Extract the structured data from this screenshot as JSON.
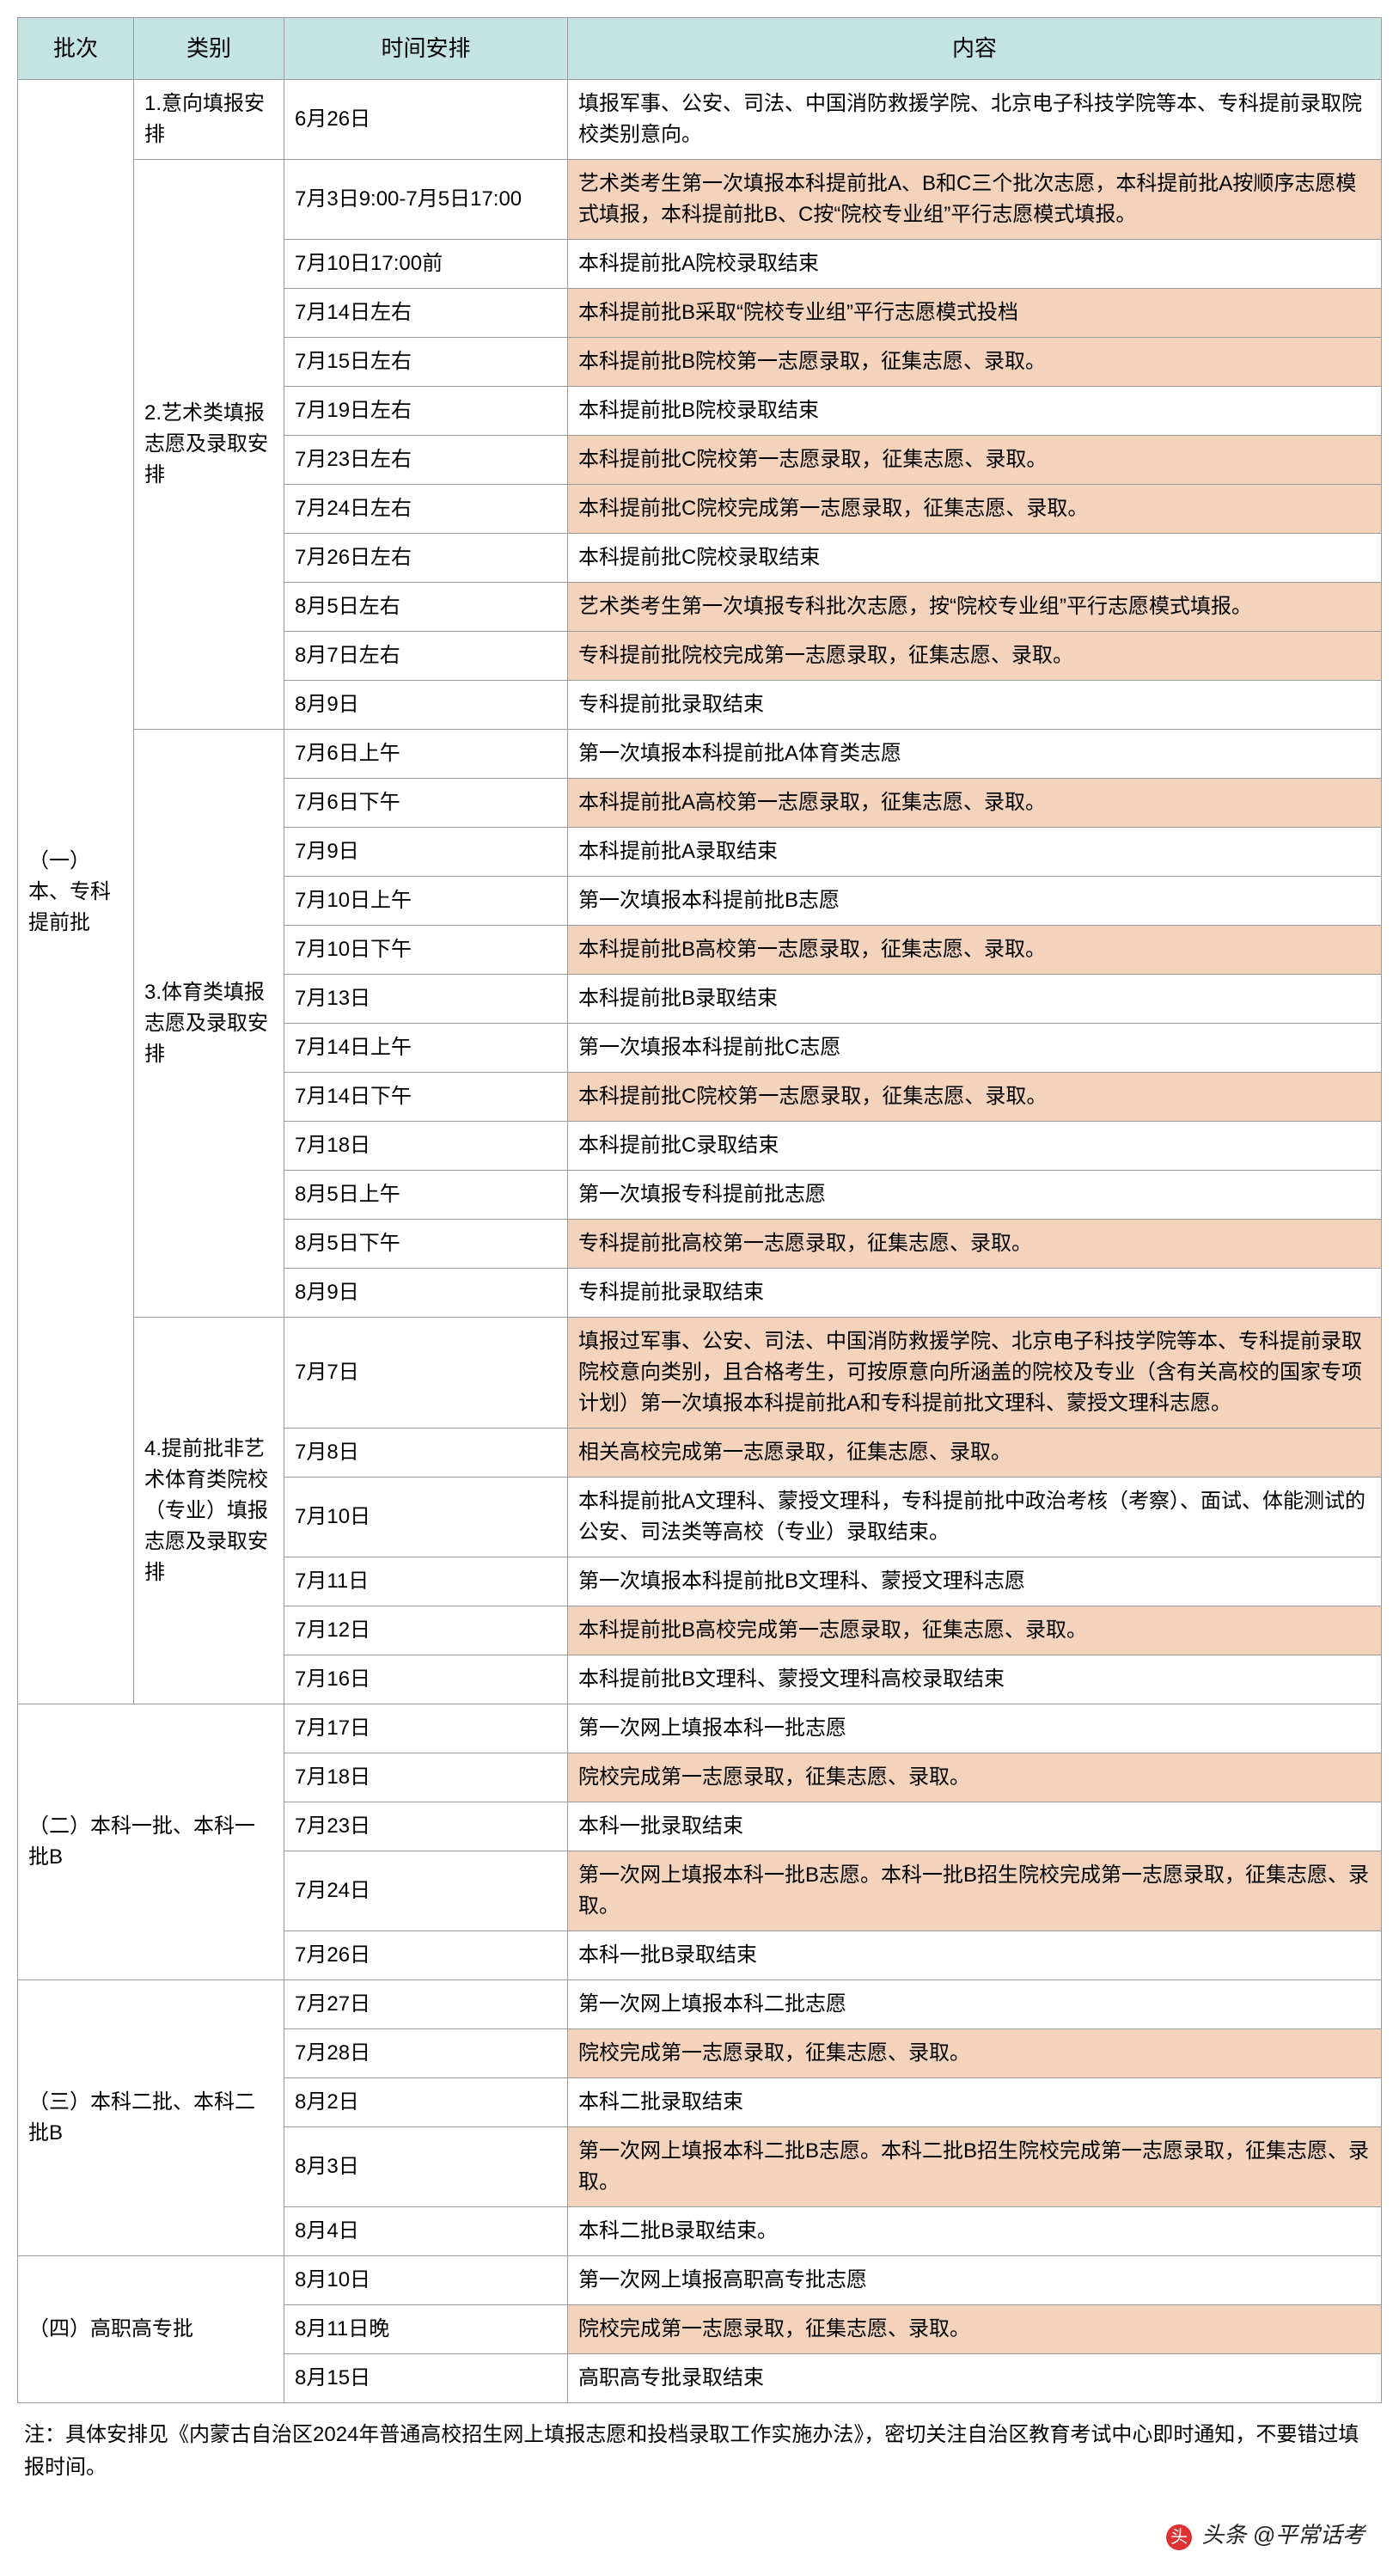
{
  "colors": {
    "header_bg": "#c3e4e0",
    "highlight_bg": "#f3d3bc",
    "border": "#999999",
    "text": "#000000"
  },
  "headers": {
    "batch": "批次",
    "category": "类别",
    "time": "时间安排",
    "content": "内容"
  },
  "batch1": {
    "label": "（一）本、专科提前批",
    "cat1": {
      "label": "1.意向填报安排",
      "rows": [
        {
          "time": "6月26日",
          "content": "填报军事、公安、司法、中国消防救援学院、北京电子科技学院等本、专科提前录取院校类别意向。",
          "hl": false
        }
      ]
    },
    "cat2": {
      "label": "2.艺术类填报志愿及录取安排",
      "rows": [
        {
          "time": "7月3日9:00-7月5日17:00",
          "content": "艺术类考生第一次填报本科提前批A、B和C三个批次志愿，本科提前批A按顺序志愿模式填报，本科提前批B、C按“院校专业组”平行志愿模式填报。",
          "hl": true
        },
        {
          "time": "7月10日17:00前",
          "content": "本科提前批A院校录取结束",
          "hl": false
        },
        {
          "time": "7月14日左右",
          "content": "本科提前批B采取“院校专业组”平行志愿模式投档",
          "hl": true
        },
        {
          "time": "7月15日左右",
          "content": "本科提前批B院校第一志愿录取，征集志愿、录取。",
          "hl": true
        },
        {
          "time": "7月19日左右",
          "content": "本科提前批B院校录取结束",
          "hl": false
        },
        {
          "time": "7月23日左右",
          "content": "本科提前批C院校第一志愿录取，征集志愿、录取。",
          "hl": true
        },
        {
          "time": "7月24日左右",
          "content": "本科提前批C院校完成第一志愿录取，征集志愿、录取。",
          "hl": true
        },
        {
          "time": "7月26日左右",
          "content": "本科提前批C院校录取结束",
          "hl": false
        },
        {
          "time": "8月5日左右",
          "content": "艺术类考生第一次填报专科批次志愿，按“院校专业组”平行志愿模式填报。",
          "hl": true
        },
        {
          "time": "8月7日左右",
          "content": "专科提前批院校完成第一志愿录取，征集志愿、录取。",
          "hl": true
        },
        {
          "time": "8月9日",
          "content": "专科提前批录取结束",
          "hl": false
        }
      ]
    },
    "cat3": {
      "label": "3.体育类填报志愿及录取安排",
      "rows": [
        {
          "time": "7月6日上午",
          "content": "第一次填报本科提前批A体育类志愿",
          "hl": false
        },
        {
          "time": "7月6日下午",
          "content": "本科提前批A高校第一志愿录取，征集志愿、录取。",
          "hl": true
        },
        {
          "time": "7月9日",
          "content": "本科提前批A录取结束",
          "hl": false
        },
        {
          "time": "7月10日上午",
          "content": "第一次填报本科提前批B志愿",
          "hl": false
        },
        {
          "time": "7月10日下午",
          "content": "本科提前批B高校第一志愿录取，征集志愿、录取。",
          "hl": true
        },
        {
          "time": "7月13日",
          "content": "本科提前批B录取结束",
          "hl": false
        },
        {
          "time": "7月14日上午",
          "content": "第一次填报本科提前批C志愿",
          "hl": false
        },
        {
          "time": "7月14日下午",
          "content": "本科提前批C院校第一志愿录取，征集志愿、录取。",
          "hl": true
        },
        {
          "time": "7月18日",
          "content": "本科提前批C录取结束",
          "hl": false
        },
        {
          "time": "8月5日上午",
          "content": "第一次填报专科提前批志愿",
          "hl": false
        },
        {
          "time": "8月5日下午",
          "content": "专科提前批高校第一志愿录取，征集志愿、录取。",
          "hl": true
        },
        {
          "time": "8月9日",
          "content": "专科提前批录取结束",
          "hl": false
        }
      ]
    },
    "cat4": {
      "label": "4.提前批非艺术体育类院校（专业）填报志愿及录取安排",
      "rows": [
        {
          "time": "7月7日",
          "content": "填报过军事、公安、司法、中国消防救援学院、北京电子科技学院等本、专科提前录取院校意向类别，且合格考生，可按原意向所涵盖的院校及专业（含有关高校的国家专项计划）第一次填报本科提前批A和专科提前批文理科、蒙授文理科志愿。",
          "hl": true
        },
        {
          "time": "7月8日",
          "content": "相关高校完成第一志愿录取，征集志愿、录取。",
          "hl": true
        },
        {
          "time": "7月10日",
          "content": "本科提前批A文理科、蒙授文理科，专科提前批中政治考核（考察）、面试、体能测试的公安、司法类等高校（专业）录取结束。",
          "hl": false
        },
        {
          "time": "7月11日",
          "content": "第一次填报本科提前批B文理科、蒙授文理科志愿",
          "hl": false
        },
        {
          "time": "7月12日",
          "content": "本科提前批B高校完成第一志愿录取，征集志愿、录取。",
          "hl": true
        },
        {
          "time": "7月16日",
          "content": "本科提前批B文理科、蒙授文理科高校录取结束",
          "hl": false
        }
      ]
    }
  },
  "batch2": {
    "label": "（二）本科一批、本科一批B",
    "rows": [
      {
        "time": "7月17日",
        "content": "第一次网上填报本科一批志愿",
        "hl": false
      },
      {
        "time": "7月18日",
        "content": "院校完成第一志愿录取，征集志愿、录取。",
        "hl": true
      },
      {
        "time": "7月23日",
        "content": "本科一批录取结束",
        "hl": false
      },
      {
        "time": "7月24日",
        "content": "第一次网上填报本科一批B志愿。本科一批B招生院校完成第一志愿录取，征集志愿、录取。",
        "hl": true
      },
      {
        "time": "7月26日",
        "content": "本科一批B录取结束",
        "hl": false
      }
    ]
  },
  "batch3": {
    "label": "（三）本科二批、本科二批B",
    "rows": [
      {
        "time": "7月27日",
        "content": "第一次网上填报本科二批志愿",
        "hl": false
      },
      {
        "time": "7月28日",
        "content": "院校完成第一志愿录取，征集志愿、录取。",
        "hl": true
      },
      {
        "time": "8月2日",
        "content": "本科二批录取结束",
        "hl": false
      },
      {
        "time": "8月3日",
        "content": "第一次网上填报本科二批B志愿。本科二批B招生院校完成第一志愿录取，征集志愿、录取。",
        "hl": true
      },
      {
        "time": "8月4日",
        "content": "本科二批B录取结束。",
        "hl": false
      }
    ]
  },
  "batch4": {
    "label": "（四）高职高专批",
    "rows": [
      {
        "time": "8月10日",
        "content": "第一次网上填报高职高专批志愿",
        "hl": false
      },
      {
        "time": "8月11日晚",
        "content": "院校完成第一志愿录取，征集志愿、录取。",
        "hl": true
      },
      {
        "time": "8月15日",
        "content": "高职高专批录取结束",
        "hl": false
      }
    ]
  },
  "note": "注：具体安排见《内蒙古自治区2024年普通高校招生网上填报志愿和投档录取工作实施办法》，密切关注自治区教育考试中心即时通知，不要错过填报时间。",
  "footer": {
    "prefix": "头条",
    "at": "@平常话考"
  }
}
